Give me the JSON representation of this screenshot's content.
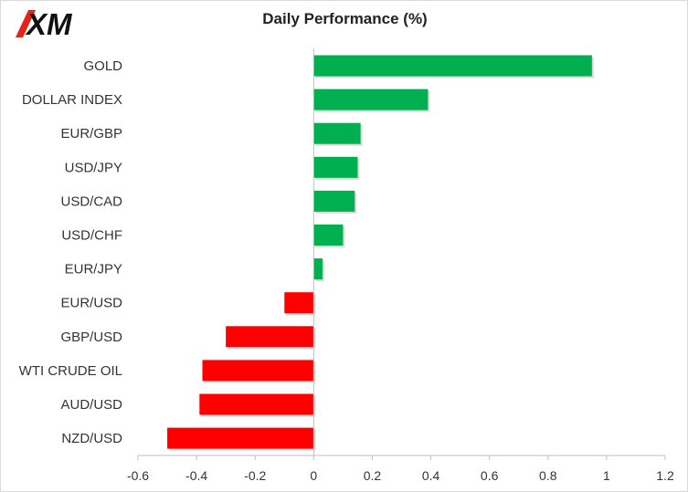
{
  "logo": {
    "text": "XM"
  },
  "chart_data": {
    "type": "bar",
    "orientation": "horizontal",
    "title": "Daily Performance (%)",
    "categories": [
      "GOLD",
      "DOLLAR INDEX",
      "EUR/GBP",
      "USD/JPY",
      "USD/CAD",
      "USD/CHF",
      "EUR/JPY",
      "EUR/USD",
      "GBP/USD",
      "WTI CRUDE OIL",
      "AUD/USD",
      "NZD/USD"
    ],
    "values": [
      0.95,
      0.39,
      0.16,
      0.15,
      0.14,
      0.1,
      0.03,
      -0.1,
      -0.3,
      -0.38,
      -0.39,
      -0.5
    ],
    "xlim": [
      -0.6,
      1.2
    ],
    "xticks": [
      "-0.6",
      "-0.4",
      "-0.2",
      "0",
      "0.2",
      "0.4",
      "0.6",
      "0.8",
      "1",
      "1.2"
    ],
    "xtick_values": [
      -0.6,
      -0.4,
      -0.2,
      0,
      0.2,
      0.4,
      0.6,
      0.8,
      1,
      1.2
    ],
    "colors": {
      "positive": "#00b050",
      "negative": "#ff0000"
    },
    "grid": false
  }
}
